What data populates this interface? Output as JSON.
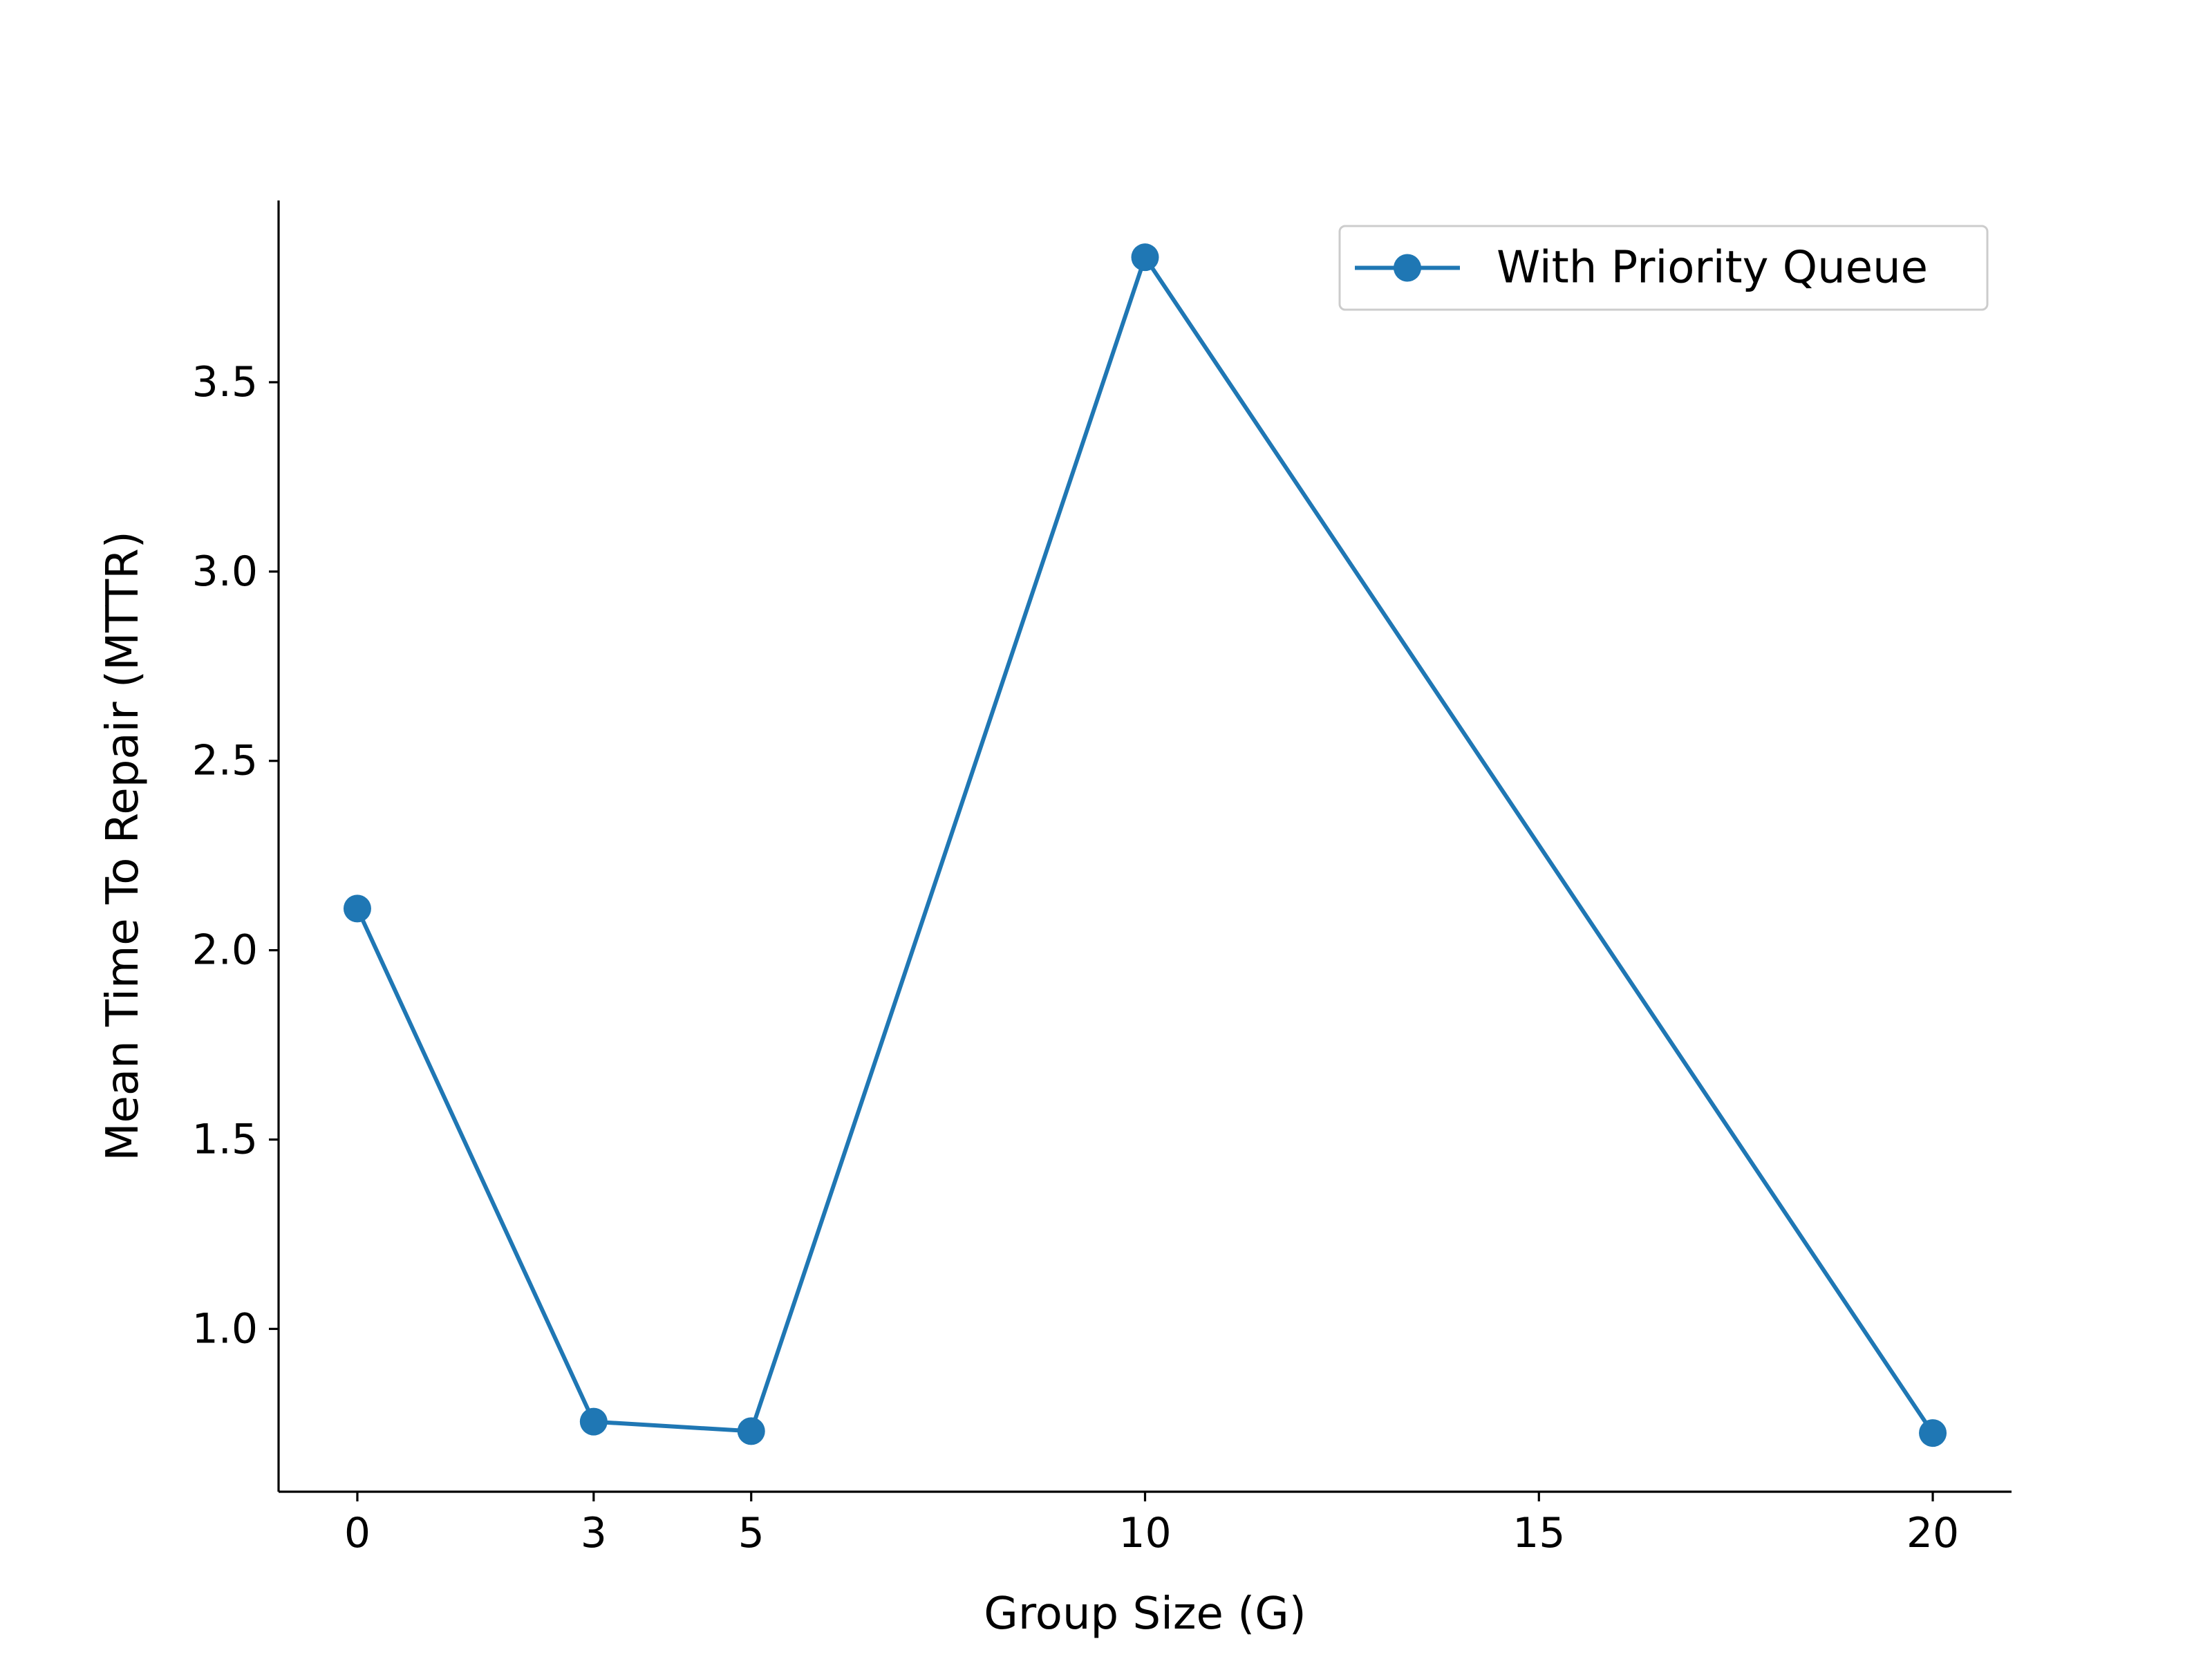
{
  "chart_data": {
    "type": "line",
    "xlabel": "Group Size (G)",
    "ylabel": "Mean Time To Repair (MTTR)",
    "x": [
      0,
      3,
      5,
      10,
      20
    ],
    "series": [
      {
        "name": "With Priority Queue",
        "values": [
          2.11,
          0.755,
          0.73,
          3.83,
          0.725
        ],
        "color": "#1f77b4",
        "marker": "circle"
      }
    ],
    "xticks": [
      0,
      3,
      5,
      10,
      15,
      20
    ],
    "xtick_labels": [
      "0",
      "3",
      "5",
      "10",
      "15",
      "20"
    ],
    "yticks": [
      1.0,
      1.5,
      2.0,
      2.5,
      3.0,
      3.5
    ],
    "ytick_labels": [
      "1.0",
      "1.5",
      "2.0",
      "2.5",
      "3.0",
      "3.5"
    ],
    "xlim": [
      -1,
      21
    ],
    "ylim": [
      0.57,
      3.98
    ],
    "grid": false,
    "legend": {
      "placement": "top-right"
    },
    "spines": [
      "left",
      "bottom"
    ]
  }
}
